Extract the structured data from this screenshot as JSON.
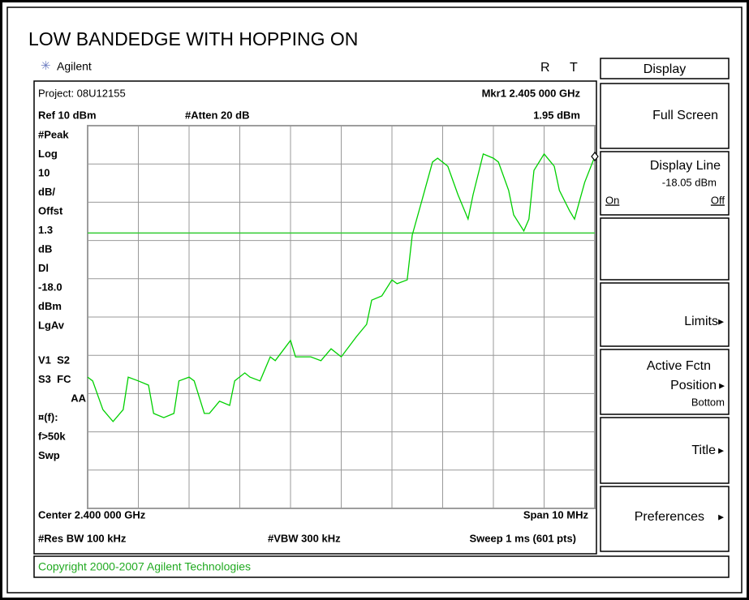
{
  "header": {
    "title": "LOW BANDEDGE WITH HOPPING ON",
    "brand": "Agilent",
    "status_r": "R",
    "status_t": "T"
  },
  "screen": {
    "project": "Project: 08U12155",
    "marker": "Mkr1  2.405 000 GHz",
    "ref": "Ref 10 dBm",
    "atten": "#Atten 20 dB",
    "marker_level": "1.95 dBm",
    "left_annotations": [
      "#Peak",
      "Log",
      "10",
      "dB/",
      "Offst",
      "1.3",
      "dB",
      "Dl",
      "-18.0",
      "dBm",
      "LgAv",
      "",
      "V1  S2",
      "S3  FC",
      "AA",
      "¤(f):",
      "f>50k",
      "Swp"
    ],
    "center": "Center 2.400 000 GHz",
    "span": "Span 10 MHz",
    "rbw": "#Res BW 100 kHz",
    "vbw": "#VBW 300 kHz",
    "sweep": "Sweep 1 ms (601 pts)",
    "trace": {
      "color": "#00d000",
      "xlim": [
        2.395,
        2.405
      ],
      "ylim": [
        -90,
        10
      ],
      "xticks": [
        2.395,
        2.396,
        2.397,
        2.398,
        2.399,
        2.4,
        2.401,
        2.402,
        2.403,
        2.404,
        2.405
      ],
      "yticks": [
        10,
        0,
        -10,
        -20,
        -30,
        -40,
        -50,
        -60,
        -70,
        -80,
        -90
      ],
      "x": [
        2.395,
        2.3951,
        2.3953,
        2.3955,
        2.3957,
        2.3958,
        2.396,
        2.3962,
        2.3963,
        2.3965,
        2.3967,
        2.3968,
        2.397,
        2.3971,
        2.3973,
        2.3974,
        2.3976,
        2.3978,
        2.3979,
        2.3981,
        2.3982,
        2.3984,
        2.3986,
        2.3987,
        2.399,
        2.3991,
        2.3994,
        2.3996,
        2.3998,
        2.4,
        2.4003,
        2.4005,
        2.4006,
        2.4008,
        2.401,
        2.4011,
        2.4013,
        2.4014,
        2.4016,
        2.4018,
        2.4019,
        2.4021,
        2.4023,
        2.4025,
        2.4026,
        2.4028,
        2.403,
        2.4031,
        2.4033,
        2.4034,
        2.4036,
        2.4037,
        2.4038,
        2.404,
        2.4042,
        2.4043,
        2.4045,
        2.4046,
        2.4048,
        2.405
      ],
      "values": [
        -55.7,
        -56.7,
        -64.2,
        -67.3,
        -64.2,
        -55.7,
        -56.7,
        -57.8,
        -65.2,
        -66.3,
        -65.2,
        -56.7,
        -55.7,
        -56.7,
        -65.2,
        -65.2,
        -62.0,
        -63.1,
        -56.7,
        -54.6,
        -55.7,
        -56.7,
        -50.4,
        -51.4,
        -46.1,
        -50.4,
        -50.4,
        -51.4,
        -48.3,
        -50.4,
        -45.1,
        -41.9,
        -35.6,
        -34.5,
        -30.3,
        -31.3,
        -30.3,
        -18.6,
        -9.1,
        0.5,
        1.5,
        -0.6,
        -8.0,
        -14.4,
        -8.0,
        2.6,
        1.5,
        0.5,
        -6.9,
        -13.3,
        -17.5,
        -14.4,
        -1.7,
        2.6,
        -0.6,
        -6.9,
        -12.2,
        -14.4,
        -4.8,
        1.95
      ],
      "display_line": {
        "value": -18.05,
        "label": "-18.05 dBm"
      },
      "display_line_color": "#33cc33"
    }
  },
  "softkeys": {
    "menu": "Display",
    "full_screen": "Full Screen",
    "display_line": "Display Line",
    "on": "On",
    "off": "Off",
    "limits": "Limits",
    "active_fctn": "Active Fctn",
    "position": "Position",
    "bottom": "Bottom",
    "title": "Title",
    "preferences": "Preferences"
  },
  "copyright": "Copyright 2000-2007 Agilent Technologies"
}
